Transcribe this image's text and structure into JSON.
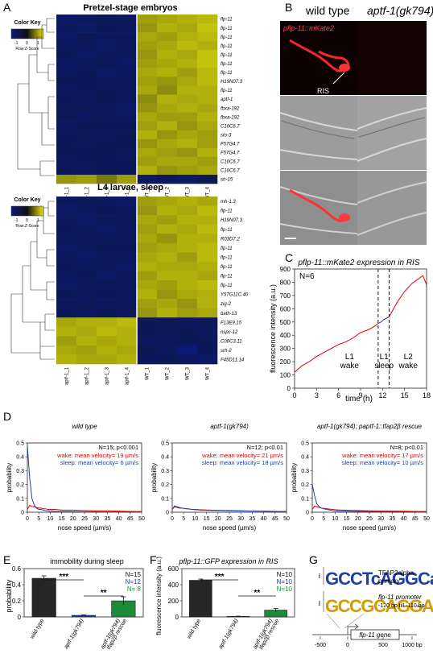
{
  "panels": {
    "A": "A",
    "B": "B",
    "C": "C",
    "D": "D",
    "E": "E",
    "F": "F",
    "G": "G"
  },
  "panel_a": {
    "color_key_label": "Color Key",
    "color_key_ticks": [
      "-1",
      "0",
      "1"
    ],
    "color_key_axis": "Row Z-Score",
    "top": {
      "title": "Pretzel-stage embryos",
      "columns": [
        "aptf-1_1",
        "aptf-1_2",
        "aptf-1_3",
        "aptf-1_4",
        "WT_1",
        "WT_2",
        "WT_3",
        "WT_4"
      ],
      "rows": [
        "flp-11",
        "flp-11",
        "flp-11",
        "flp-11",
        "flp-11",
        "flp-11",
        "flp-11",
        "H19N07.3",
        "flp-11",
        "aptf-1",
        "fbxa-192",
        "fbxa-192",
        "C10C6.7",
        "sto-3",
        "F57G4.7",
        "F57G4.7",
        "C10C6.7",
        "C10C6.7",
        "str-15"
      ],
      "values": [
        [
          -1.0,
          -0.9,
          -0.8,
          -0.9,
          0.7,
          0.8,
          0.9,
          1.0
        ],
        [
          -0.9,
          -1.0,
          -0.8,
          -0.9,
          0.6,
          0.9,
          0.8,
          1.1
        ],
        [
          -1.0,
          -0.8,
          -0.9,
          -0.9,
          0.8,
          0.7,
          0.9,
          1.0
        ],
        [
          -0.9,
          -0.9,
          -1.0,
          -0.8,
          0.7,
          0.8,
          1.0,
          0.9
        ],
        [
          -0.8,
          -1.0,
          -0.9,
          -0.9,
          0.6,
          0.9,
          0.8,
          1.1
        ],
        [
          -1.0,
          -0.9,
          -0.8,
          -1.0,
          0.7,
          0.8,
          0.9,
          1.1
        ],
        [
          -0.9,
          -0.8,
          -1.0,
          -0.9,
          0.8,
          0.9,
          0.7,
          1.0
        ],
        [
          -0.7,
          -0.8,
          -0.9,
          -0.9,
          0.7,
          0.6,
          0.8,
          1.0
        ],
        [
          -0.9,
          -0.8,
          -0.8,
          -0.9,
          0.8,
          0.5,
          0.9,
          0.9
        ],
        [
          -0.8,
          -0.9,
          -0.7,
          -0.9,
          0.5,
          0.9,
          0.8,
          0.9
        ],
        [
          -0.8,
          -0.7,
          -0.9,
          -1.0,
          0.6,
          0.8,
          0.9,
          0.8
        ],
        [
          -0.7,
          -0.9,
          -0.8,
          -0.9,
          0.8,
          0.7,
          0.7,
          0.9
        ],
        [
          -0.9,
          -0.7,
          -0.8,
          -0.8,
          0.7,
          0.9,
          0.6,
          0.8
        ],
        [
          -0.8,
          -0.8,
          -0.9,
          -0.6,
          0.9,
          0.6,
          0.8,
          0.7
        ],
        [
          -0.7,
          -0.9,
          -0.8,
          -0.8,
          0.6,
          0.8,
          0.9,
          0.7
        ],
        [
          -0.8,
          -0.8,
          -0.7,
          -0.9,
          0.8,
          0.7,
          0.6,
          0.9
        ],
        [
          -0.9,
          -0.8,
          -0.8,
          -0.7,
          0.7,
          0.8,
          0.8,
          0.7
        ],
        [
          -0.8,
          -0.9,
          -0.7,
          -0.8,
          0.9,
          0.6,
          0.7,
          0.8
        ],
        [
          0.6,
          0.7,
          0.3,
          0.7,
          -1.0,
          -0.8,
          -1.0,
          -0.6
        ]
      ]
    },
    "bottom": {
      "title": "L4 larvae, sleep",
      "columns": [
        "aptf-1_1",
        "aptf-1_2",
        "aptf-1_3",
        "aptf-1_4",
        "WT_1",
        "WT_2",
        "WT_3",
        "WT_4"
      ],
      "rows": [
        "mh-1.3",
        "flp-11",
        "H19N07.3",
        "flp-11",
        "R03D7.2",
        "flp-11",
        "flp-11",
        "flp-11",
        "flp-11",
        "flp-11",
        "Y57G11C.40",
        "zig-2",
        "bath-13",
        "F13E9.15",
        "nspc-12",
        "C06C3.11",
        "srh-2",
        "F45D11.14"
      ],
      "values": [
        [
          -0.9,
          -0.8,
          -0.9,
          -1.0,
          0.7,
          0.8,
          0.9,
          0.8
        ],
        [
          -1.0,
          -0.9,
          -0.8,
          -0.9,
          0.6,
          0.9,
          0.8,
          1.0
        ],
        [
          -0.9,
          -1.0,
          -0.9,
          -0.8,
          0.8,
          0.7,
          0.9,
          0.9
        ],
        [
          -0.8,
          -0.9,
          -1.0,
          -0.9,
          0.7,
          0.9,
          0.8,
          1.0
        ],
        [
          -0.9,
          -0.8,
          -0.9,
          -0.9,
          0.8,
          0.6,
          0.9,
          0.9
        ],
        [
          -1.0,
          -0.9,
          -0.8,
          -0.8,
          0.7,
          0.8,
          0.9,
          1.0
        ],
        [
          -0.9,
          -1.0,
          -0.9,
          -0.9,
          0.8,
          0.9,
          0.7,
          1.0
        ],
        [
          -0.8,
          -0.9,
          -0.9,
          -1.0,
          0.9,
          0.8,
          0.8,
          0.9
        ],
        [
          -0.9,
          -0.8,
          -1.0,
          -0.9,
          0.7,
          0.9,
          0.9,
          0.8
        ],
        [
          -1.0,
          -0.9,
          -0.8,
          -0.9,
          0.8,
          0.7,
          0.9,
          1.0
        ],
        [
          -0.8,
          -0.9,
          -0.8,
          -0.9,
          0.9,
          0.6,
          0.8,
          0.9
        ],
        [
          -0.9,
          -0.7,
          -0.9,
          -0.8,
          0.7,
          0.8,
          0.6,
          0.9
        ],
        [
          -0.8,
          -0.9,
          -0.7,
          -0.9,
          0.6,
          0.9,
          0.7,
          0.8
        ],
        [
          0.8,
          0.9,
          0.9,
          1.0,
          -0.7,
          -0.8,
          -0.9,
          -0.8
        ],
        [
          0.9,
          0.8,
          1.0,
          0.9,
          -0.8,
          -0.9,
          -0.7,
          -0.9
        ],
        [
          0.7,
          0.9,
          0.8,
          0.9,
          -0.9,
          -0.8,
          -0.8,
          -0.7
        ],
        [
          0.8,
          0.7,
          0.9,
          0.8,
          -0.6,
          -0.9,
          -1.4,
          -0.8
        ],
        [
          0.9,
          0.8,
          0.8,
          0.9,
          -0.8,
          -0.7,
          -0.9,
          -1.1
        ]
      ]
    }
  },
  "panel_b": {
    "col_left": "wild type",
    "col_right": "aptf-1(gk794)",
    "channel_label": "pflp-11::mKate2",
    "ris_label": "RIS"
  },
  "colors": {
    "wake": "#e00000",
    "sleep": "#1e3fa8",
    "rescue": "#1d8a3a",
    "bar_dark": "#262626"
  },
  "chart_data": [
    {
      "panel": "C",
      "type": "line",
      "title": "pflp-11::mKate2 expression in RIS",
      "xlabel": "time (h)",
      "ylabel": "fluorescence intensity (a.u.)",
      "xlim": [
        0,
        18
      ],
      "ylim": [
        0,
        900
      ],
      "xticks": [
        "0",
        "3",
        "6",
        "9",
        "12",
        "15",
        "18"
      ],
      "yticks": [
        "0",
        "100",
        "200",
        "300",
        "400",
        "500",
        "600",
        "700",
        "800",
        "900"
      ],
      "n_label": "N=6",
      "stage_labels": [
        {
          "text": [
            "L1",
            "wake"
          ],
          "x": 7.5
        },
        {
          "text": [
            "L1",
            "sleep"
          ],
          "x": 12.2
        },
        {
          "text": [
            "L2",
            "wake"
          ],
          "x": 15.5
        }
      ],
      "dashed_lines_x": [
        11.4,
        12.9
      ],
      "series": [
        {
          "segment": "wake",
          "x": [
            0,
            1,
            2,
            3,
            4,
            5,
            6,
            7,
            8,
            9,
            10,
            11,
            11.4
          ],
          "y": [
            120,
            170,
            200,
            240,
            270,
            300,
            330,
            350,
            380,
            420,
            440,
            470,
            490
          ]
        },
        {
          "segment": "sleep",
          "x": [
            11.4,
            11.8,
            12.2,
            12.6,
            12.9
          ],
          "y": [
            490,
            500,
            520,
            530,
            540
          ]
        },
        {
          "segment": "wake",
          "x": [
            12.9,
            13.5,
            14,
            14.5,
            15,
            15.5,
            16,
            16.5,
            17,
            17.5,
            18
          ],
          "y": [
            540,
            600,
            650,
            690,
            730,
            760,
            790,
            810,
            830,
            850,
            780
          ]
        }
      ]
    },
    {
      "panel": "D",
      "type": "line",
      "subplots": [
        {
          "title": "wild type",
          "stats": "N=15; p<0.001",
          "legend": [
            "wake: mean velocity= 19 µm/s",
            "sleep: mean velocity=  6 µm/s"
          ],
          "x": [
            0,
            1,
            2,
            3,
            4,
            5,
            6,
            7,
            8,
            9,
            10,
            12,
            15,
            20,
            25,
            30,
            35,
            40,
            45,
            50
          ],
          "wake": [
            0.02,
            0.05,
            0.04,
            0.04,
            0.035,
            0.03,
            0.03,
            0.025,
            0.025,
            0.02,
            0.02,
            0.02,
            0.015,
            0.015,
            0.012,
            0.01,
            0.01,
            0.008,
            0.006,
            0.005
          ],
          "sleep": [
            0.48,
            0.25,
            0.1,
            0.05,
            0.03,
            0.02,
            0.02,
            0.015,
            0.012,
            0.01,
            0.008,
            0.006,
            0.005,
            0.004,
            0.003,
            0.003,
            0.002,
            0.002,
            0.002,
            0.001
          ]
        },
        {
          "title": "aptf-1(gk794)",
          "stats": "N=12; p<0.01",
          "legend": [
            "wake: mean velocity= 21 µm/s",
            "sleep: mean velocity= 18 µm/s"
          ],
          "x": [
            0,
            1,
            2,
            3,
            4,
            5,
            6,
            7,
            8,
            9,
            10,
            12,
            15,
            20,
            25,
            30,
            35,
            40,
            45,
            50
          ],
          "wake": [
            0.02,
            0.04,
            0.035,
            0.03,
            0.03,
            0.028,
            0.025,
            0.025,
            0.022,
            0.02,
            0.02,
            0.018,
            0.016,
            0.014,
            0.012,
            0.01,
            0.009,
            0.008,
            0.006,
            0.005
          ],
          "sleep": [
            0.02,
            0.045,
            0.04,
            0.035,
            0.03,
            0.028,
            0.026,
            0.024,
            0.022,
            0.02,
            0.018,
            0.016,
            0.014,
            0.012,
            0.01,
            0.009,
            0.008,
            0.007,
            0.006,
            0.005
          ]
        },
        {
          "title": "aptf-1(gk794); paptf-1::tfap2β rescue",
          "stats": "N=8; p<0.01",
          "legend": [
            "wake: mean velocity= 17 µm/s",
            "sleep: mean velocity= 10 µm/s"
          ],
          "x": [
            0,
            1,
            2,
            3,
            4,
            5,
            6,
            7,
            8,
            9,
            10,
            12,
            15,
            20,
            25,
            30,
            35,
            40,
            45,
            50
          ],
          "wake": [
            0.02,
            0.045,
            0.04,
            0.035,
            0.03,
            0.028,
            0.026,
            0.024,
            0.022,
            0.02,
            0.018,
            0.016,
            0.014,
            0.012,
            0.01,
            0.009,
            0.008,
            0.007,
            0.006,
            0.005
          ],
          "sleep": [
            0.2,
            0.12,
            0.06,
            0.04,
            0.03,
            0.025,
            0.02,
            0.018,
            0.015,
            0.012,
            0.01,
            0.008,
            0.007,
            0.006,
            0.005,
            0.004,
            0.004,
            0.003,
            0.003,
            0.002
          ]
        }
      ],
      "xlabel": "nose speed (µm/s)",
      "ylabel": "probability",
      "xlim": [
        0,
        50
      ],
      "ylim": [
        0,
        0.5
      ],
      "xticks": [
        "0",
        "5",
        "10",
        "15",
        "20",
        "25",
        "30",
        "35",
        "40",
        "45",
        "50"
      ],
      "yticks": [
        "0",
        "0.1",
        "0.2",
        "0.3",
        "0.4",
        "0.5"
      ]
    },
    {
      "panel": "E",
      "type": "bar",
      "title": "immobility during sleep",
      "ylabel": "probability",
      "ylim": [
        0,
        0.6
      ],
      "yticks": [
        "0",
        "0.2",
        "0.4",
        "0.6"
      ],
      "categories": [
        "wild type",
        "aptf-1(gk794)",
        "aptf-1(gk794) tfap2β rescue"
      ],
      "values": [
        0.48,
        0.02,
        0.2
      ],
      "errors": [
        0.03,
        0.005,
        0.05
      ],
      "n_labels": [
        "N=15",
        "N=12",
        "N= 8"
      ],
      "sig": [
        "***",
        "**"
      ]
    },
    {
      "panel": "F",
      "type": "bar",
      "title": "pflp-11::GFP expression in RIS",
      "ylabel": "fluorescence intensity (a.u.)",
      "ylim": [
        0,
        600
      ],
      "yticks": [
        "0",
        "200",
        "400",
        "600"
      ],
      "categories": [
        "wild type",
        "aptf-1(gk794)",
        "aptf-1(gk794) tfap2β rescue"
      ],
      "values": [
        455,
        8,
        85
      ],
      "errors": [
        15,
        2,
        20
      ],
      "n_labels": [
        "N=10",
        "N=10",
        "N=10"
      ],
      "sig": [
        "***",
        "**"
      ]
    }
  ],
  "panel_g": {
    "logo1_label": [
      "TFAP2alpha",
      "primary"
    ],
    "logo1_letters": "GCCTcAGGCa",
    "logo2_label": [
      "flp-11 promoter",
      "-120 bp till -110 bp"
    ],
    "logo2_letters": "GCCGCAGGACA",
    "gene_label": "flp-11 gene",
    "axis_ticks": [
      "-500",
      "0",
      "500",
      "1000 bp"
    ],
    "bits_label": "bits"
  }
}
